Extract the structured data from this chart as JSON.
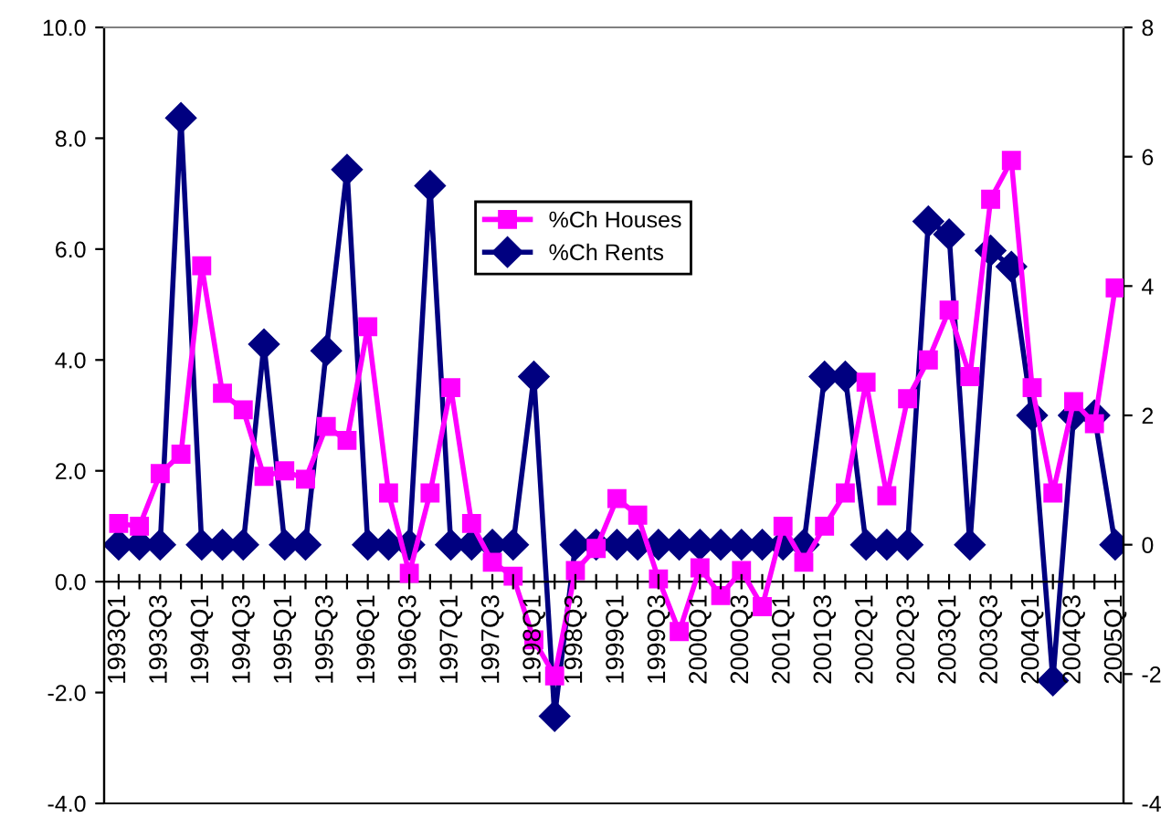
{
  "chart_data": {
    "type": "line",
    "categories": [
      "1993Q1",
      null,
      "1993Q3",
      null,
      "1994Q1",
      null,
      "1994Q3",
      null,
      "1995Q1",
      null,
      "1995Q3",
      null,
      "1996Q1",
      null,
      "1996Q3",
      null,
      "1997Q1",
      null,
      "1997Q3",
      null,
      "1998Q1",
      null,
      "1998Q3",
      null,
      "1999Q1",
      null,
      "1999Q3",
      null,
      "2000Q1",
      null,
      "2000Q3",
      null,
      "2001Q1",
      null,
      "2001Q3",
      null,
      "2002Q1",
      null,
      "2002Q3",
      null,
      "2003Q1",
      null,
      "2003Q3",
      null,
      "2004Q1",
      null,
      "2004Q3",
      null,
      "2005Q1"
    ],
    "series": [
      {
        "name": "%Ch Houses",
        "color": "#ff00ff",
        "marker": "square",
        "values": [
          1.05,
          1.0,
          1.95,
          2.3,
          5.7,
          3.4,
          3.1,
          1.9,
          2.0,
          1.85,
          2.8,
          2.55,
          4.6,
          1.6,
          0.15,
          1.6,
          3.5,
          1.05,
          0.35,
          0.1,
          -1.05,
          -1.7,
          0.2,
          0.6,
          1.5,
          1.2,
          0.05,
          -0.9,
          0.25,
          -0.25,
          0.2,
          -0.45,
          1.0,
          0.35,
          1.0,
          1.6,
          3.6,
          1.55,
          3.3,
          4.0,
          4.9,
          3.7,
          6.9,
          7.6,
          3.5,
          1.6,
          3.25,
          2.85,
          5.3
        ]
      },
      {
        "name": "%Ch Rents",
        "color": "#000080",
        "marker": "diamond",
        "axis": "y2",
        "values": [
          0,
          0,
          0,
          6.6,
          0,
          0,
          0,
          3.1,
          0,
          0,
          3.0,
          5.8,
          0,
          0,
          0,
          5.55,
          0,
          0,
          0,
          0,
          2.6,
          -2.65,
          0,
          0,
          0,
          0,
          0,
          0,
          0,
          0,
          0,
          0,
          0,
          0,
          2.6,
          2.6,
          0,
          0,
          0,
          5.0,
          4.8,
          0,
          4.55,
          4.3,
          2.0,
          -2.1,
          2.0,
          2.0,
          0
        ]
      }
    ],
    "ylim": [
      -4,
      10
    ],
    "yticks": [
      {
        "value": -4,
        "label": "-4.0"
      },
      {
        "value": -2,
        "label": "-2.0"
      },
      {
        "value": 0,
        "label": "0.0"
      },
      {
        "value": 2,
        "label": "2.0"
      },
      {
        "value": 4,
        "label": "4.0"
      },
      {
        "value": 6,
        "label": "6.0"
      },
      {
        "value": 8,
        "label": "8.0"
      },
      {
        "value": 10,
        "label": "10.0"
      }
    ],
    "y2lim": [
      -4,
      8
    ],
    "y2ticks": [
      -4,
      -2,
      0,
      2,
      4,
      6,
      8
    ],
    "legend": "top",
    "grid": false
  }
}
